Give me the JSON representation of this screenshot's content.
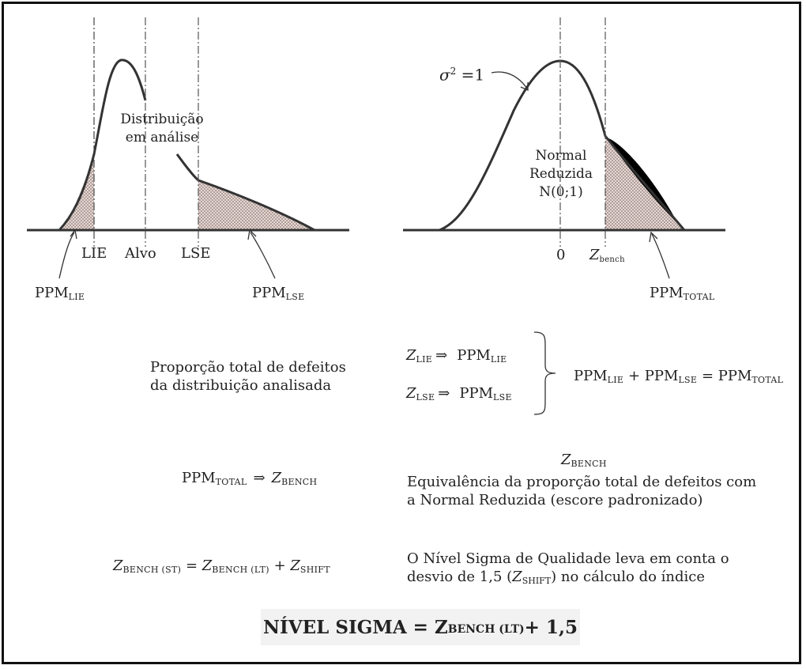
{
  "left_chart": {
    "dist_label_1": "Distribuição",
    "dist_label_2": "em análise",
    "lie": "LIE",
    "alvo": "Alvo",
    "lse": "LSE",
    "ppm_lie": {
      "main": "PPM",
      "sub": "LIE"
    },
    "ppm_lse": {
      "main": "PPM",
      "sub": "LSE"
    }
  },
  "right_chart": {
    "sigma_label": "σ",
    "sigma_exp": "2",
    "sigma_rest": " =1",
    "normal_1": "Normal",
    "normal_2": "Reduzida",
    "normal_3": "N(0;1)",
    "zero": "0",
    "zbench": {
      "main": "Z",
      "sub": "bench"
    },
    "ppm_total": {
      "main": "PPM",
      "sub": "TOTAL"
    }
  },
  "text": {
    "proporcao_1": "Proporção total de defeitos",
    "proporcao_2": "da distribuição analisada",
    "z_lie": {
      "z": "Z",
      "sub": "LIE",
      "arrow": "⇒",
      "ppm": "PPM",
      "ppm_sub": "LIE"
    },
    "z_lse": {
      "z": "Z",
      "sub": "LSE",
      "arrow": "⇒",
      "ppm": "PPM",
      "ppm_sub": "LSE"
    },
    "sum": {
      "a": "PPM",
      "a_sub": "LIE",
      "plus": " + ",
      "b": "PPM",
      "b_sub": "LSE",
      "eq": " = ",
      "c": "PPM",
      "c_sub": "TOTAL"
    },
    "ppm_total_row": {
      "ppm": "PPM",
      "ppm_sub": "TOTAL",
      "arrow": "⇒",
      "z": "Z",
      "z_sub": "BENCH"
    },
    "zbench_title": {
      "z": "Z",
      "sub": "BENCH"
    },
    "equiv_1": "Equivalência da proporção total de defeitos com",
    "equiv_2": "a Normal Reduzida (escore padronizado)",
    "formula": {
      "z1": "Z",
      "s1": "BENCH (ST)",
      "eq": " = ",
      "z2": "Z",
      "s2": "BENCH (LT)",
      "plus": " + ",
      "z3": "Z",
      "s3": "SHIFT"
    },
    "nivel_1": "O Nível Sigma de Qualidade leva em conta o",
    "nivel_2a": "desvio de 1,5 (",
    "nivel_2z": "Z",
    "nivel_2s": "SHIFT",
    "nivel_2b": ") no cálculo do índice",
    "final": {
      "main": "NÍVEL SIGMA = Z",
      "sub": "BENCH (LT)",
      "rest": " + 1,5"
    }
  },
  "colors": {
    "stroke": "#333333",
    "hatch_bg": "#e6d8d4",
    "hatch_dot": "#8a7470",
    "black_fill": "#000000"
  }
}
